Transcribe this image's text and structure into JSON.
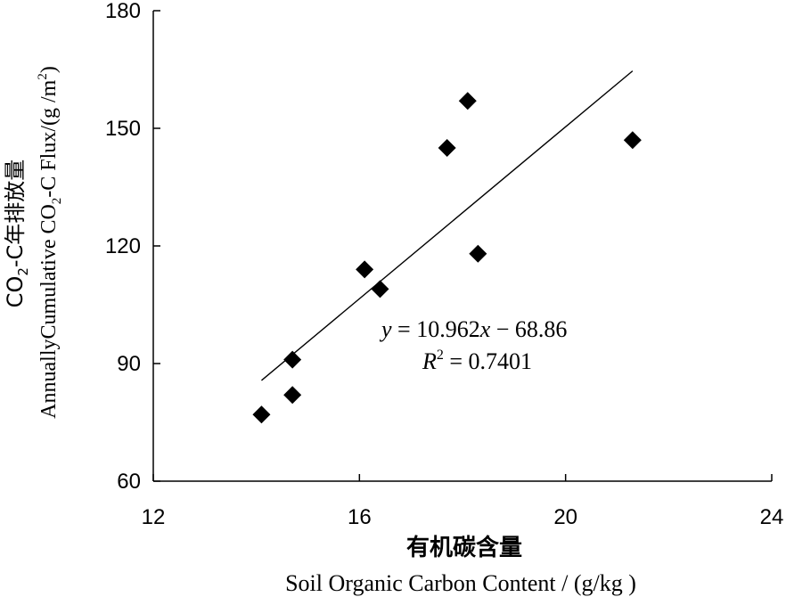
{
  "chart_data": {
    "type": "scatter",
    "xlabel_cn": "有机碳含量",
    "xlabel_en": "Soil Organic Carbon Content / (g/kg )",
    "ylabel_cn": "CO2-C年排放量",
    "ylabel_en": "AnnuallyCumulative CO2-C Flux/(g /m2)",
    "xlim": [
      12,
      24
    ],
    "ylim": [
      60,
      180
    ],
    "xticks": [
      "12",
      "16",
      "20",
      "24"
    ],
    "yticks": [
      "60",
      "90",
      "120",
      "150",
      "180"
    ],
    "points": [
      {
        "x": 14.1,
        "y": 77
      },
      {
        "x": 14.7,
        "y": 82
      },
      {
        "x": 14.7,
        "y": 91
      },
      {
        "x": 16.1,
        "y": 114
      },
      {
        "x": 16.4,
        "y": 109
      },
      {
        "x": 17.7,
        "y": 145
      },
      {
        "x": 18.1,
        "y": 157
      },
      {
        "x": 18.3,
        "y": 118
      },
      {
        "x": 21.3,
        "y": 147
      }
    ],
    "trendline": {
      "slope": 10.962,
      "intercept": -68.86,
      "x_range": [
        14.1,
        21.3
      ]
    },
    "equation": {
      "y": "y",
      "eq_rest": " = 10.962",
      "x": "x",
      "rest": " − 68.86"
    },
    "r2": {
      "label": "R",
      "sup": "2",
      "value": " = 0.7401"
    },
    "grid": false,
    "legend": "none",
    "marker": "diamond",
    "color": "#000000"
  }
}
